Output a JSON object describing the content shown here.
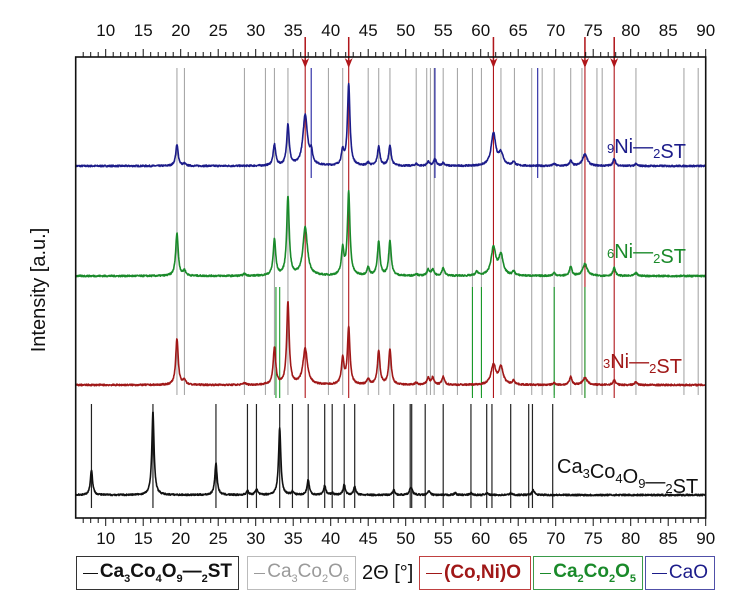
{
  "chart_data": {
    "type": "line",
    "title": "",
    "xlabel": "2Θ [°]",
    "ylabel": "Intensity [a.u.]",
    "xlim": [
      6,
      90
    ],
    "ylim": [
      0,
      461
    ],
    "xticks": [
      10,
      15,
      20,
      25,
      30,
      35,
      40,
      45,
      50,
      55,
      60,
      65,
      70,
      75,
      80,
      85,
      90
    ],
    "grid": false,
    "series": [
      {
        "name": "9Ni_2ST",
        "color": "#1c1c8a",
        "baseline": 352,
        "width": 0.2,
        "peaks": [
          [
            19.5,
            21
          ],
          [
            20.5,
            2
          ],
          [
            32.5,
            21
          ],
          [
            34.3,
            41
          ],
          [
            36.6,
            51
          ],
          [
            37.4,
            12
          ],
          [
            41.6,
            14
          ],
          [
            42.4,
            82
          ],
          [
            45.0,
            3
          ],
          [
            46.4,
            19
          ],
          [
            47.9,
            20
          ],
          [
            51.4,
            2
          ],
          [
            53.0,
            4
          ],
          [
            53.9,
            7
          ],
          [
            55.0,
            3
          ],
          [
            61.7,
            32
          ],
          [
            62.7,
            12
          ],
          [
            64.4,
            4
          ],
          [
            69.8,
            2
          ],
          [
            72.0,
            5
          ],
          [
            73.9,
            12
          ],
          [
            77.8,
            7
          ],
          [
            80.7,
            2
          ]
        ]
      },
      {
        "name": "6Ni_2ST",
        "color": "#1a8a2a",
        "baseline": 242,
        "width": 0.2,
        "peaks": [
          [
            19.5,
            43
          ],
          [
            20.5,
            5
          ],
          [
            28.5,
            2
          ],
          [
            32.5,
            36
          ],
          [
            34.3,
            79
          ],
          [
            36.6,
            48
          ],
          [
            41.6,
            26
          ],
          [
            42.4,
            83
          ],
          [
            45.0,
            8
          ],
          [
            46.4,
            34
          ],
          [
            47.9,
            35
          ],
          [
            51.4,
            2
          ],
          [
            53.0,
            6
          ],
          [
            53.6,
            6
          ],
          [
            55.0,
            8
          ],
          [
            59.5,
            4
          ],
          [
            61.7,
            28
          ],
          [
            62.7,
            20
          ],
          [
            64.4,
            4
          ],
          [
            69.8,
            3
          ],
          [
            72.0,
            9
          ],
          [
            73.9,
            12
          ],
          [
            77.8,
            8
          ],
          [
            80.7,
            3
          ]
        ]
      },
      {
        "name": "3Ni_2ST",
        "color": "#a01818",
        "baseline": 133,
        "width": 0.2,
        "peaks": [
          [
            19.5,
            46
          ],
          [
            20.5,
            5
          ],
          [
            28.5,
            2
          ],
          [
            32.5,
            37
          ],
          [
            34.3,
            82
          ],
          [
            36.6,
            36
          ],
          [
            41.6,
            26
          ],
          [
            42.4,
            57
          ],
          [
            45.0,
            6
          ],
          [
            46.4,
            34
          ],
          [
            47.9,
            35
          ],
          [
            51.4,
            2
          ],
          [
            53.0,
            7
          ],
          [
            53.6,
            7
          ],
          [
            55.0,
            8
          ],
          [
            61.7,
            20
          ],
          [
            62.7,
            17
          ],
          [
            64.4,
            4
          ],
          [
            69.8,
            2
          ],
          [
            72.0,
            8
          ],
          [
            73.9,
            7
          ],
          [
            77.8,
            5
          ],
          [
            80.7,
            3
          ]
        ]
      },
      {
        "name": "Ca3Co4O9_2ST",
        "color": "#111111",
        "baseline": 23,
        "width": 0.18,
        "peaks": [
          [
            8.1,
            25
          ],
          [
            16.3,
            83
          ],
          [
            24.7,
            32
          ],
          [
            28.9,
            4
          ],
          [
            30.1,
            6
          ],
          [
            33.2,
            67
          ],
          [
            34.9,
            3
          ],
          [
            37.0,
            15
          ],
          [
            39.2,
            9
          ],
          [
            40.2,
            2
          ],
          [
            41.8,
            10
          ],
          [
            43.2,
            8
          ],
          [
            48.4,
            5
          ],
          [
            50.6,
            4
          ],
          [
            50.8,
            5
          ],
          [
            53.1,
            4
          ],
          [
            56.6,
            2
          ],
          [
            58.7,
            2
          ],
          [
            60.8,
            2
          ],
          [
            64.0,
            2
          ],
          [
            67.0,
            5
          ]
        ]
      }
    ],
    "reference_patterns": [
      {
        "name": "Ca3Co4O9_2ST",
        "color": "#222222",
        "range": [
          10,
          114
        ],
        "positions": [
          8.1,
          16.3,
          24.7,
          28.9,
          30.1,
          33.2,
          34.9,
          37.0,
          39.2,
          40.2,
          41.8,
          43.2,
          48.4,
          50.6,
          50.8,
          52.6,
          55.0,
          58.7,
          60.8,
          61.5,
          64.0,
          66.4,
          66.9,
          69.6
        ]
      },
      {
        "name": "Ca3Co2O6",
        "color": "#a8a8a8",
        "range": [
          123,
          450
        ],
        "positions": [
          19.5,
          20.5,
          28.5,
          31.3,
          32.5,
          34.3,
          39.7,
          41.6,
          45.0,
          46.4,
          47.9,
          51.4,
          52.8,
          53.3,
          53.8,
          55.0,
          56.9,
          58.9,
          60.1,
          62.7,
          64.5,
          66.8,
          68.2,
          69.8,
          72.0,
          73.5,
          75.5,
          76.2,
          80.7,
          87.1,
          89.0
        ]
      },
      {
        "name": "(Co,Ni)O",
        "color": "#b0161b",
        "range": [
          120,
          480
        ],
        "positions": [
          36.6,
          42.4,
          61.7,
          73.9,
          77.8
        ]
      },
      {
        "name": "Ca2Co2O5",
        "color": "#1a9a2a",
        "range": [
          120,
          231
        ],
        "positions": [
          32.7,
          33.2,
          58.9,
          60.1,
          69.8,
          73.9
        ]
      },
      {
        "name": "CaO",
        "color": "#2020a0",
        "range": [
          340,
          450
        ],
        "positions": [
          37.4,
          53.9,
          67.6
        ]
      }
    ],
    "arrows": {
      "color": "#b0161b",
      "positions": [
        36.6,
        42.4,
        61.7,
        73.9,
        77.8
      ]
    },
    "legend": [
      {
        "label": "Ca3Co4O9—2ST",
        "color": "#111111",
        "border": "#333333",
        "bold": true
      },
      {
        "label": "Ca3Co2O6",
        "color": "#9a9a9a",
        "border": "#bbbbbb",
        "bold": false
      },
      {
        "label": "(Co,Ni)O",
        "color": "#a01818",
        "border": "#c04040",
        "bold": true
      },
      {
        "label": "Ca2Co2O5",
        "color": "#1a8a2a",
        "border": "#3a9a4a",
        "bold": true
      },
      {
        "label": "CaO",
        "color": "#1c1c8a",
        "border": "#5050a8",
        "bold": false
      }
    ],
    "legend_position": "bottom"
  }
}
